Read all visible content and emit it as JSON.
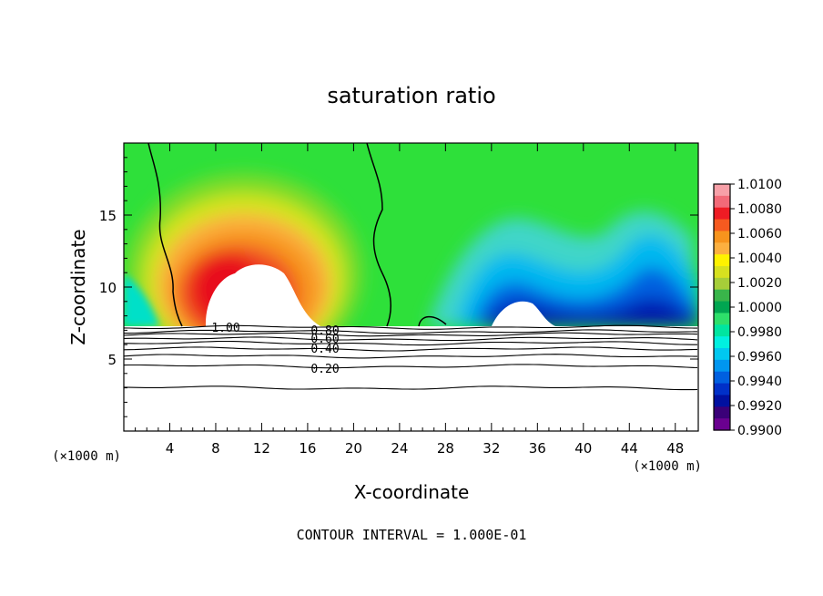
{
  "chart_data": {
    "type": "heatmap",
    "title": "saturation ratio",
    "xlabel": "X-coordinate",
    "ylabel": "Z-coordinate",
    "x_unit_left": "(×1000 m)",
    "x_unit_right": "(×1000 m)",
    "footer": "CONTOUR INTERVAL = 1.000E-01",
    "xlim": [
      0,
      50
    ],
    "ylim": [
      0,
      20
    ],
    "x_ticks": [
      4,
      8,
      12,
      16,
      20,
      24,
      28,
      32,
      36,
      40,
      44,
      48
    ],
    "y_ticks": [
      5,
      10,
      15
    ],
    "colorbar": {
      "levels": [
        "1.0100",
        "1.0080",
        "1.0060",
        "1.0040",
        "1.0020",
        "1.0000",
        "0.9980",
        "0.9960",
        "0.9940",
        "0.9920",
        "0.9900"
      ],
      "min": 0.99,
      "max": 1.01,
      "colors": [
        "#f7a0a8",
        "#f26a78",
        "#ee1c24",
        "#f65a20",
        "#f7941d",
        "#fcb040",
        "#fff200",
        "#d7e11f",
        "#a6ce39",
        "#39b54a",
        "#00a651",
        "#2edf6a",
        "#00e5a0",
        "#00f0e0",
        "#00c8f0",
        "#0096f0",
        "#0060e0",
        "#0030c8",
        "#0010a0",
        "#3a0078",
        "#6a0090"
      ]
    },
    "contour_labels": [
      "1.00",
      "0.80",
      "0.60",
      "0.40",
      "0.20"
    ],
    "contour_levels_z": [
      {
        "z": 7.2
      },
      {
        "z": 6.9
      },
      {
        "z": 6.7
      },
      {
        "z": 6.4
      },
      {
        "z": 6.1
      },
      {
        "z": 5.7
      },
      {
        "z": 5.2
      },
      {
        "z": 4.5
      },
      {
        "z": 3.0
      }
    ]
  }
}
